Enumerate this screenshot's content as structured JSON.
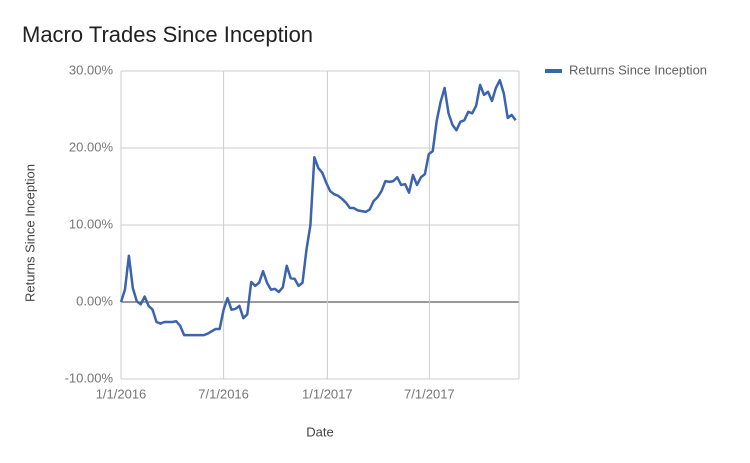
{
  "chart_data": {
    "type": "line",
    "title": "Macro Trades Since Inception",
    "x_label": "Date",
    "y_label": "Returns Since Inception",
    "x": [
      "2016-01-01",
      "2016-01-08",
      "2016-01-15",
      "2016-01-22",
      "2016-01-29",
      "2016-02-05",
      "2016-02-12",
      "2016-02-19",
      "2016-02-26",
      "2016-03-04",
      "2016-03-11",
      "2016-03-18",
      "2016-03-25",
      "2016-04-01",
      "2016-04-08",
      "2016-04-15",
      "2016-04-22",
      "2016-04-29",
      "2016-05-06",
      "2016-05-13",
      "2016-05-20",
      "2016-05-27",
      "2016-06-03",
      "2016-06-10",
      "2016-06-17",
      "2016-06-24",
      "2016-07-01",
      "2016-07-08",
      "2016-07-15",
      "2016-07-22",
      "2016-07-29",
      "2016-08-05",
      "2016-08-12",
      "2016-08-19",
      "2016-08-26",
      "2016-09-02",
      "2016-09-09",
      "2016-09-16",
      "2016-09-23",
      "2016-09-30",
      "2016-10-07",
      "2016-10-14",
      "2016-10-21",
      "2016-10-28",
      "2016-11-04",
      "2016-11-11",
      "2016-11-18",
      "2016-11-25",
      "2016-12-02",
      "2016-12-09",
      "2016-12-16",
      "2016-12-23",
      "2016-12-30",
      "2017-01-06",
      "2017-01-13",
      "2017-01-20",
      "2017-01-27",
      "2017-02-03",
      "2017-02-10",
      "2017-02-17",
      "2017-02-24",
      "2017-03-03",
      "2017-03-10",
      "2017-03-17",
      "2017-03-24",
      "2017-03-31",
      "2017-04-07",
      "2017-04-14",
      "2017-04-21",
      "2017-04-28",
      "2017-05-05",
      "2017-05-12",
      "2017-05-19",
      "2017-05-26",
      "2017-06-02",
      "2017-06-09",
      "2017-06-16",
      "2017-06-23",
      "2017-06-30",
      "2017-07-07",
      "2017-07-14",
      "2017-07-21",
      "2017-07-28",
      "2017-08-04",
      "2017-08-11",
      "2017-08-18",
      "2017-08-25",
      "2017-09-01",
      "2017-09-08",
      "2017-09-15",
      "2017-09-22",
      "2017-09-29",
      "2017-10-06",
      "2017-10-13",
      "2017-10-20",
      "2017-10-27",
      "2017-11-03",
      "2017-11-10",
      "2017-11-17",
      "2017-11-24",
      "2017-12-01"
    ],
    "series": [
      {
        "name": "Returns Since Inception",
        "color": "#3c63ad",
        "values": [
          0,
          1.6,
          6.0,
          1.8,
          0.1,
          -0.3,
          0.7,
          -0.5,
          -1.0,
          -2.6,
          -2.8,
          -2.6,
          -2.6,
          -2.6,
          -2.5,
          -3.1,
          -4.3,
          -4.3,
          -4.3,
          -4.3,
          -4.3,
          -4.3,
          -4.1,
          -3.8,
          -3.5,
          -3.5,
          -1.0,
          0.5,
          -1.0,
          -0.9,
          -0.5,
          -2.1,
          -1.6,
          2.6,
          2.1,
          2.5,
          4.0,
          2.5,
          1.6,
          1.7,
          1.3,
          1.9,
          4.7,
          3.1,
          3.0,
          2.1,
          2.5,
          6.8,
          10.0,
          18.8,
          17.4,
          16.8,
          15.5,
          14.4,
          14.0,
          13.8,
          13.4,
          12.9,
          12.2,
          12.2,
          11.9,
          11.8,
          11.7,
          12.0,
          13.1,
          13.6,
          14.4,
          15.7,
          15.6,
          15.7,
          16.2,
          15.2,
          15.3,
          14.2,
          16.5,
          15.2,
          16.2,
          16.6,
          19.2,
          19.6,
          23.5,
          26.0,
          27.8,
          24.5,
          23.0,
          22.3,
          23.4,
          23.6,
          24.7,
          24.5,
          25.5,
          28.2,
          26.9,
          27.3,
          26.1,
          27.8,
          28.8,
          27.1,
          23.9,
          24.3,
          23.6
        ]
      }
    ],
    "xlim": [
      "2016-01-01",
      "2017-12-07"
    ],
    "xticks": [
      {
        "value": "2016-01-01",
        "label": "1/1/2016"
      },
      {
        "value": "2016-07-01",
        "label": "7/1/2016"
      },
      {
        "value": "2017-01-01",
        "label": "1/1/2017"
      },
      {
        "value": "2017-07-01",
        "label": "7/1/2017"
      }
    ],
    "ylim": [
      -10,
      30
    ],
    "yticks": [
      {
        "value": -10,
        "label": "-10.00%"
      },
      {
        "value": 0,
        "label": "0.00%"
      },
      {
        "value": 10,
        "label": "10.00%"
      },
      {
        "value": 20,
        "label": "20.00%"
      },
      {
        "value": 30,
        "label": "30.00%"
      }
    ],
    "grid": true,
    "legend": "right"
  }
}
